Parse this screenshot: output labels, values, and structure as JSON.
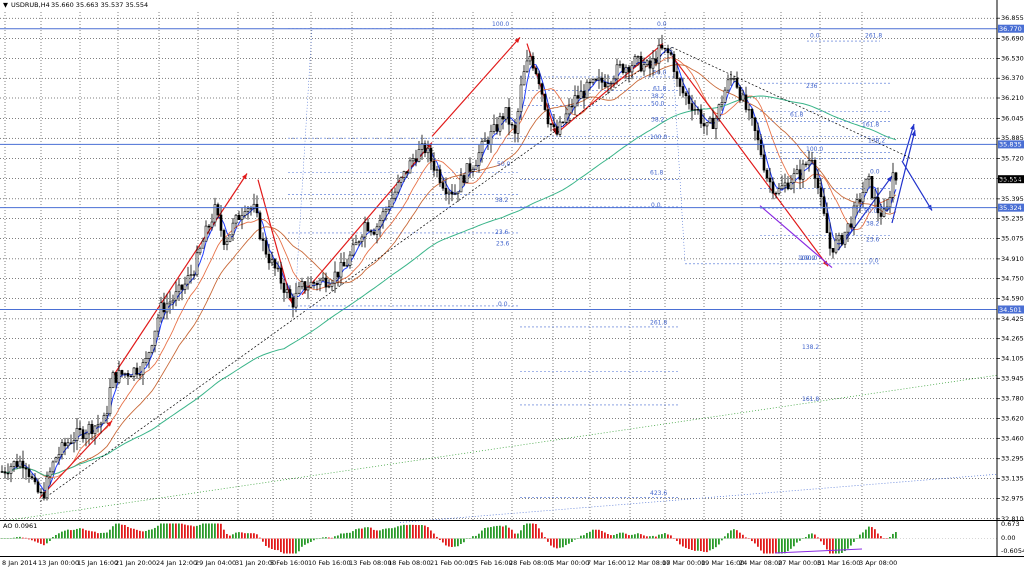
{
  "header": {
    "symbol_label": "USDRUB,H4",
    "ohlc_label": "35.660 35.663 35.537 35.554"
  },
  "oscillator": {
    "label": "AO 0.0961",
    "axis_labels": [
      "0.673",
      "0.00",
      "-0.6054"
    ],
    "range": [
      -0.6054,
      0.673
    ]
  },
  "chart_data": {
    "type": "candlestick",
    "symbol": "USDRUB",
    "timeframe": "H4",
    "ylim": [
      32.8,
      36.9
    ],
    "y_ticks": [
      36.855,
      36.69,
      36.53,
      36.37,
      36.21,
      36.045,
      35.885,
      35.72,
      35.56,
      35.395,
      35.235,
      35.075,
      34.91,
      34.75,
      34.59,
      34.425,
      34.265,
      34.105,
      33.945,
      33.78,
      33.62,
      33.46,
      33.295,
      33.135,
      32.975,
      32.81
    ],
    "x_ticks": [
      "8 Jan 2014",
      "13 Jan 00:00",
      "15 Jan 16:00",
      "21 Jan 20:00",
      "24 Jan 12:00",
      "29 Jan 04:00",
      "31 Jan 20:00",
      "5 Feb 16:00",
      "10 Feb 16:00",
      "13 Feb 08:00",
      "18 Feb 08:00",
      "21 Feb 00:00",
      "25 Feb 16:00",
      "28 Feb 08:00",
      "5 Mar 00:00",
      "7 Mar 16:00",
      "12 Mar 08:00",
      "17 Mar 00:00",
      "19 Mar 16:00",
      "24 Mar 08:00",
      "27 Mar 00:00",
      "31 Mar 16:00",
      "3 Apr 08:00"
    ],
    "price_series_anchors": [
      [
        0,
        33.18
      ],
      [
        12,
        33.25
      ],
      [
        25,
        33.28
      ],
      [
        35,
        33.05
      ],
      [
        42,
        32.98
      ],
      [
        55,
        33.3
      ],
      [
        70,
        33.45
      ],
      [
        90,
        33.55
      ],
      [
        105,
        33.6
      ],
      [
        112,
        33.95
      ],
      [
        130,
        34.0
      ],
      [
        145,
        34.05
      ],
      [
        160,
        34.5
      ],
      [
        175,
        34.6
      ],
      [
        185,
        34.7
      ],
      [
        195,
        34.85
      ],
      [
        205,
        35.1
      ],
      [
        215,
        35.3
      ],
      [
        225,
        35.05
      ],
      [
        235,
        35.2
      ],
      [
        245,
        35.35
      ],
      [
        255,
        35.3
      ],
      [
        262,
        35.05
      ],
      [
        270,
        34.9
      ],
      [
        280,
        34.75
      ],
      [
        292,
        34.55
      ],
      [
        302,
        34.68
      ],
      [
        315,
        34.72
      ],
      [
        330,
        34.75
      ],
      [
        345,
        34.85
      ],
      [
        355,
        35.0
      ],
      [
        365,
        35.2
      ],
      [
        375,
        35.15
      ],
      [
        385,
        35.3
      ],
      [
        395,
        35.45
      ],
      [
        405,
        35.6
      ],
      [
        415,
        35.75
      ],
      [
        425,
        35.8
      ],
      [
        435,
        35.65
      ],
      [
        445,
        35.5
      ],
      [
        455,
        35.45
      ],
      [
        465,
        35.6
      ],
      [
        475,
        35.7
      ],
      [
        485,
        35.85
      ],
      [
        495,
        35.95
      ],
      [
        505,
        36.1
      ],
      [
        515,
        35.9
      ],
      [
        522,
        36.35
      ],
      [
        530,
        36.55
      ],
      [
        538,
        36.4
      ],
      [
        548,
        36.05
      ],
      [
        556,
        35.9
      ],
      [
        565,
        36.05
      ],
      [
        575,
        36.2
      ],
      [
        590,
        36.3
      ],
      [
        605,
        36.35
      ],
      [
        620,
        36.45
      ],
      [
        635,
        36.5
      ],
      [
        650,
        36.45
      ],
      [
        660,
        36.6
      ],
      [
        672,
        36.55
      ],
      [
        678,
        36.3
      ],
      [
        688,
        36.2
      ],
      [
        698,
        36.1
      ],
      [
        706,
        35.95
      ],
      [
        716,
        36.05
      ],
      [
        726,
        36.3
      ],
      [
        734,
        36.4
      ],
      [
        742,
        36.2
      ],
      [
        752,
        36.0
      ],
      [
        760,
        35.8
      ],
      [
        768,
        35.55
      ],
      [
        778,
        35.45
      ],
      [
        790,
        35.55
      ],
      [
        800,
        35.6
      ],
      [
        812,
        35.75
      ],
      [
        820,
        35.4
      ],
      [
        830,
        35.0
      ],
      [
        840,
        35.05
      ],
      [
        850,
        35.2
      ],
      [
        860,
        35.4
      ],
      [
        868,
        35.55
      ],
      [
        878,
        35.3
      ],
      [
        886,
        35.25
      ],
      [
        893,
        35.6
      ],
      [
        897,
        35.55
      ]
    ],
    "horizontal_levels": [
      36.77,
      35.835,
      35.324,
      34.501
    ],
    "current_price": 35.554,
    "fib_labels": [
      "100.0",
      "0.0",
      "0.0",
      "261.8",
      "236",
      "161.8",
      "138.2",
      "100.0",
      "61.8",
      "50.0",
      "38.2",
      "23.6",
      "0.0",
      "261.8",
      "138.2",
      "161.8",
      "423.6",
      "23.6",
      "0.0",
      "61.8",
      "50.0",
      "38.2",
      "100.0",
      "100.0",
      "0.0",
      "50.0",
      "38.2",
      "23.6",
      "0.0",
      "100.0",
      "50.0",
      "38.2",
      "61.8"
    ]
  }
}
